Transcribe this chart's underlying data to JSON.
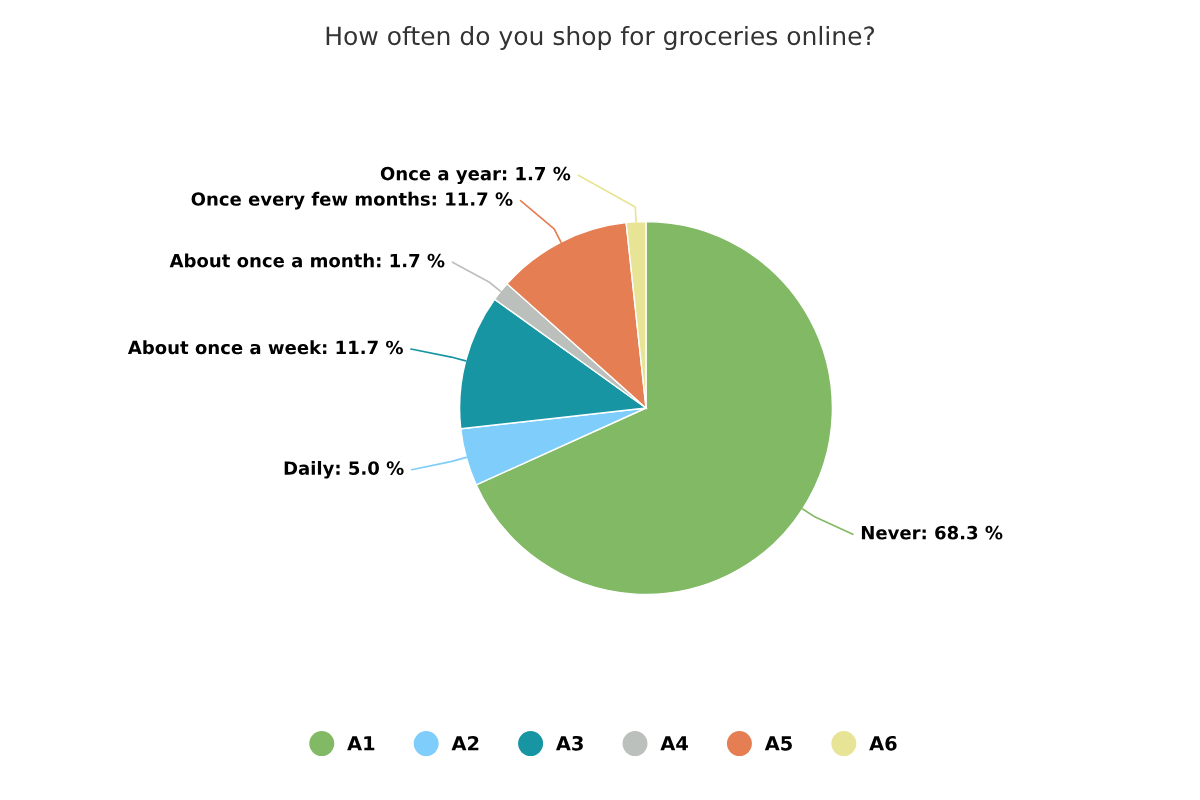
{
  "chart_data": {
    "type": "pie",
    "title": "How often do you shop for groceries online?",
    "categories": [
      "A1",
      "A2",
      "A3",
      "A4",
      "A5",
      "A6"
    ],
    "values": [
      68.3,
      5.0,
      11.7,
      1.7,
      11.7,
      1.7
    ],
    "colors": [
      "#82b964",
      "#7fcdfb",
      "#1795a3",
      "#bcc0bc",
      "#e57e53",
      "#e8e496"
    ],
    "value_labels": [
      "Never: 68.3 %",
      "Daily: 5.0 %",
      "About once a week: 11.7 %",
      "About once a month: 1.7 %",
      "Once every few months: 11.7 %",
      "Once a year: 1.7 %"
    ],
    "legend": "bottom"
  }
}
